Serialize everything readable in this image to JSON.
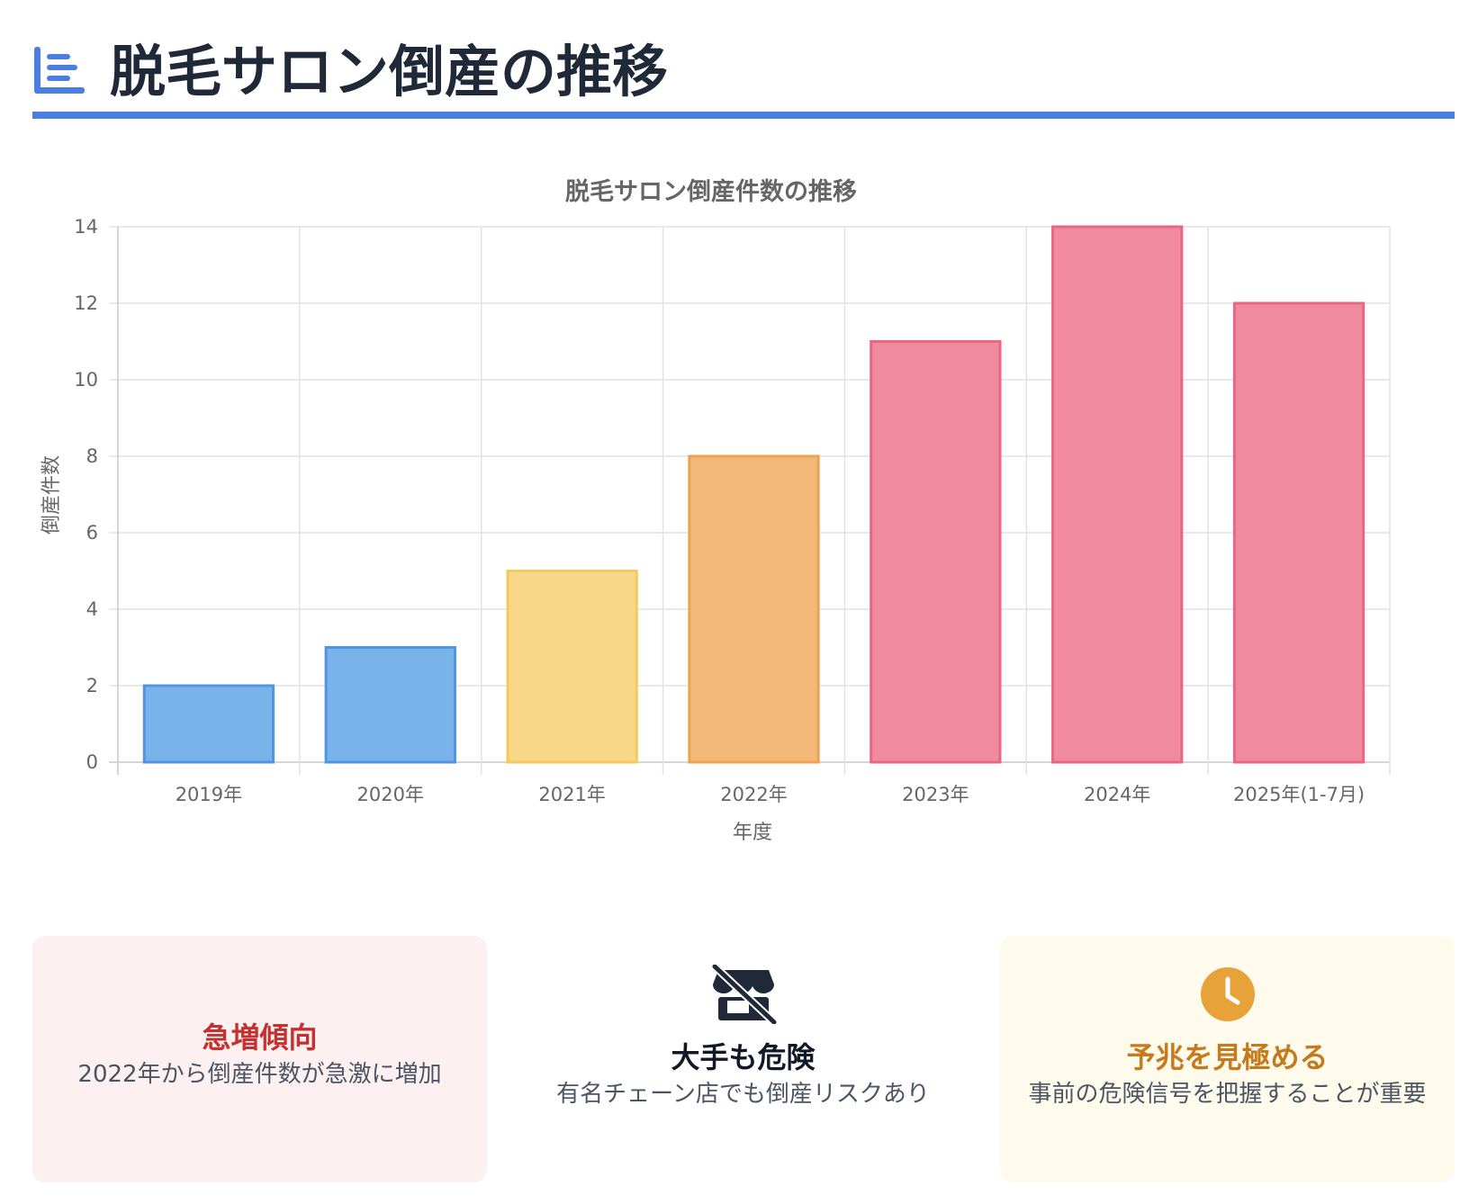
{
  "header": {
    "title": "脱毛サロン倒産の推移",
    "icon": "chart-list-icon",
    "accent_color": "#4a7fe0"
  },
  "chart_data": {
    "type": "bar",
    "title": "脱毛サロン倒産件数の推移",
    "xlabel": "年度",
    "ylabel": "倒産件数",
    "categories": [
      "2019年",
      "2020年",
      "2021年",
      "2022年",
      "2023年",
      "2024年",
      "2025年(1-7月)"
    ],
    "values": [
      2,
      3,
      5,
      8,
      11,
      14,
      12
    ],
    "ylim": [
      0,
      14
    ],
    "yticks": [
      0,
      2,
      4,
      6,
      8,
      10,
      12,
      14
    ],
    "grid": true,
    "legend": "none",
    "bar_colors": [
      "#79b3ea",
      "#79b3ea",
      "#f8d888",
      "#f2b878",
      "#f08a9e",
      "#f08a9e",
      "#f08a9e"
    ],
    "bar_border_colors": [
      "#4f95e2",
      "#4f95e2",
      "#f4c95d",
      "#eda152",
      "#e86784",
      "#e86784",
      "#e86784"
    ]
  },
  "cards": [
    {
      "title": "急増傾向",
      "text": "2022年から倒産件数が急激に増加",
      "title_color": "#c53030"
    },
    {
      "icon": "store-slash-icon",
      "title": "大手も危険",
      "text": "有名チェーン店でも倒産リスクあり",
      "title_color": "#111827"
    },
    {
      "icon": "clock-icon",
      "title": "予兆を見極める",
      "text": "事前の危険信号を把握することが重要",
      "title_color": "#c57a1e",
      "icon_color": "#e8a23a"
    }
  ]
}
